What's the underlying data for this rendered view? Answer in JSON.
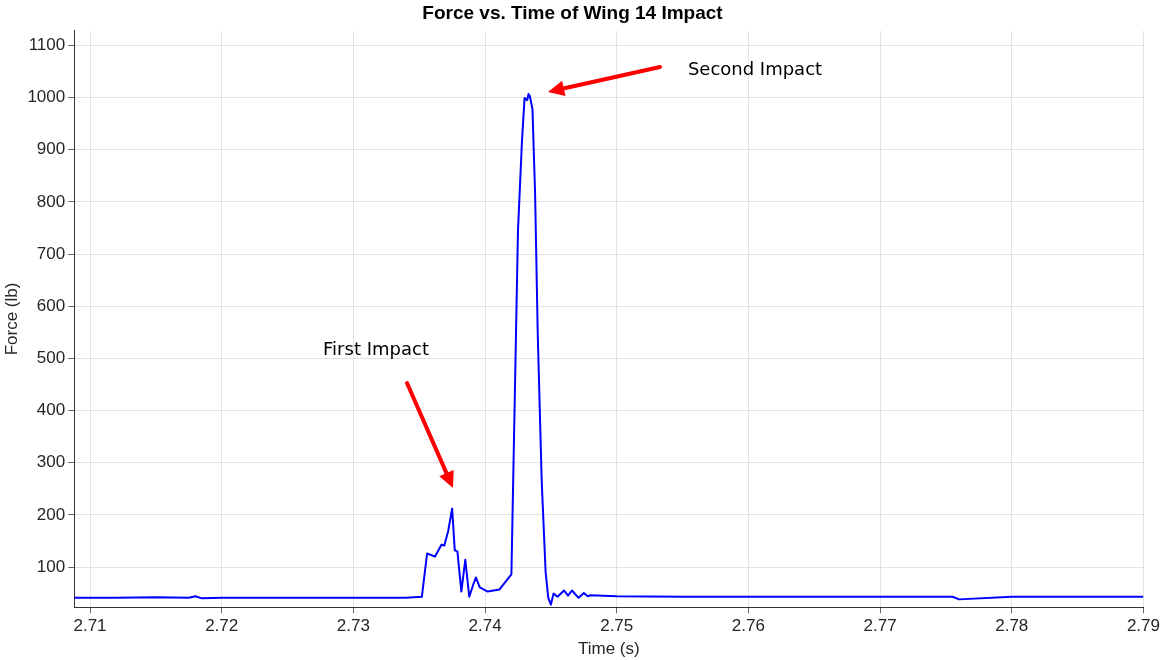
{
  "chart_data": {
    "type": "line",
    "title": "Force vs. Time of Wing 14 Impact",
    "xlabel": "Time (s)",
    "ylabel": "Force (lb)",
    "x": [
      2.7088,
      2.712,
      2.715,
      2.7175,
      2.718,
      2.7185,
      2.72,
      2.725,
      2.73,
      2.734,
      2.7352,
      2.7356,
      2.7362,
      2.7367,
      2.7369,
      2.7372,
      2.7375,
      2.7377,
      2.7379,
      2.7382,
      2.7385,
      2.7388,
      2.7391,
      2.7393,
      2.7396,
      2.7402,
      2.7411,
      2.742,
      2.7422,
      2.7425,
      2.7428,
      2.743,
      2.7432,
      2.7433,
      2.7434,
      2.7436,
      2.7438,
      2.744,
      2.7443,
      2.7446,
      2.7448,
      2.745,
      2.7452,
      2.7455,
      2.746,
      2.7463,
      2.7466,
      2.7471,
      2.7475,
      2.7478,
      2.748,
      2.75,
      2.755,
      2.76,
      2.765,
      2.77,
      2.7755,
      2.776,
      2.78,
      2.785,
      2.79
    ],
    "series": [
      {
        "color": "#0000ff",
        "values": [
          41,
          41,
          42,
          41,
          44,
          40,
          41,
          41,
          41,
          41,
          43,
          126,
          120,
          143,
          141,
          169,
          212,
          132,
          130,
          53,
          114,
          43,
          66,
          80,
          61,
          53,
          57,
          86,
          350,
          745,
          915,
          999,
          995,
          1007,
          1003,
          978,
          816,
          548,
          266,
          90,
          41,
          28,
          49,
          43,
          55,
          45,
          55,
          41,
          50,
          44,
          46,
          44,
          43,
          43,
          43,
          43,
          43,
          38,
          43,
          43,
          43
        ]
      }
    ],
    "xlim": [
      2.7088,
      2.79
    ],
    "ylim": [
      23,
      1128
    ],
    "xticks": [
      2.71,
      2.72,
      2.73,
      2.74,
      2.75,
      2.76,
      2.77,
      2.78,
      2.79
    ],
    "yticks": [
      100,
      200,
      300,
      400,
      500,
      600,
      700,
      800,
      900,
      1000,
      1100
    ],
    "grid": true,
    "marker": "none",
    "line_style": "solid",
    "annotations": [
      "First Impact",
      "Second Impact"
    ]
  }
}
